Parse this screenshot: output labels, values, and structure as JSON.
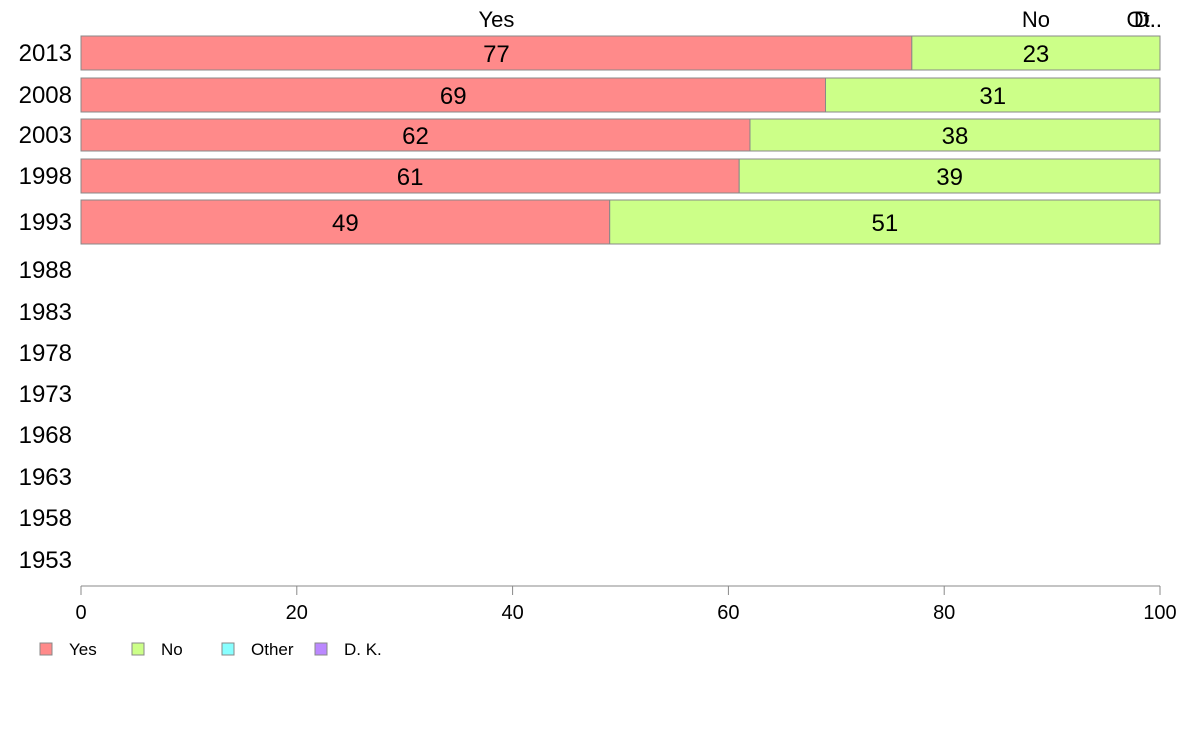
{
  "chart_data": {
    "type": "bar",
    "orientation": "horizontal",
    "stacked": true,
    "categories": [
      "2013",
      "2008",
      "2003",
      "1998",
      "1993",
      "1988",
      "1983",
      "1978",
      "1973",
      "1968",
      "1963",
      "1958",
      "1953"
    ],
    "series": [
      {
        "name": "Yes",
        "color": "#ff8a8a",
        "values": [
          77,
          69,
          62,
          61,
          49,
          null,
          null,
          null,
          null,
          null,
          null,
          null,
          null
        ]
      },
      {
        "name": "No",
        "color": "#ccff88",
        "values": [
          23,
          31,
          38,
          39,
          51,
          null,
          null,
          null,
          null,
          null,
          null,
          null,
          null
        ]
      },
      {
        "name": "Other",
        "color": "#88ffff",
        "values": [
          0,
          0,
          0,
          0,
          0,
          null,
          null,
          null,
          null,
          null,
          null,
          null,
          null
        ]
      },
      {
        "name": "D. K.",
        "color": "#bb88ff",
        "values": [
          0,
          0,
          0,
          0,
          0,
          null,
          null,
          null,
          null,
          null,
          null,
          null,
          null
        ]
      }
    ],
    "top_labels": [
      {
        "text": "Yes",
        "at": 38.5
      },
      {
        "text": "No",
        "at": 88.5
      },
      {
        "text": "Ot..",
        "at": 100
      },
      {
        "text": "D..",
        "at": 100
      }
    ],
    "xlim": [
      0,
      100
    ],
    "xticks": [
      0,
      20,
      40,
      60,
      80,
      100
    ],
    "grid": false,
    "legend_position": "bottom-left"
  }
}
